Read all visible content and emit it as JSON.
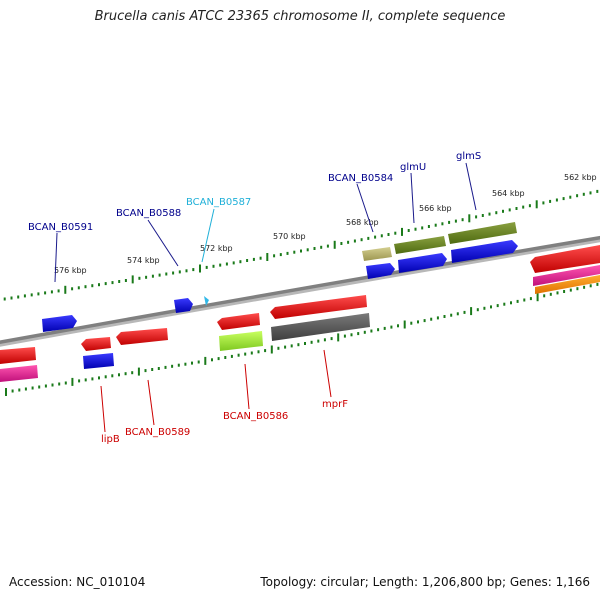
{
  "title": "Brucella canis ATCC 23365 chromosome II, complete sequence",
  "accession": "Accession: NC_010104",
  "summary": "Topology: circular; Length: 1,206,800 bp; Genes: 1,166",
  "scale_labels": [
    "576 kbp",
    "574 kbp",
    "572 kbp",
    "570 kbp",
    "568 kbp",
    "566 kbp",
    "564 kbp",
    "562 kbp"
  ],
  "forward_gene_labels": [
    "BCAN_B0591",
    "BCAN_B0588",
    "BCAN_B0587",
    "BCAN_B0584",
    "glmU",
    "glmS"
  ],
  "reverse_gene_labels": [
    "lipB",
    "BCAN_B0589",
    "BCAN_B0586",
    "mprF"
  ],
  "colors": {
    "forward_label": "#00008b",
    "cyan_label": "#20b0d8",
    "reverse_label": "#cc0000",
    "backbone": "#888888",
    "tick": "#1a7a1a"
  }
}
